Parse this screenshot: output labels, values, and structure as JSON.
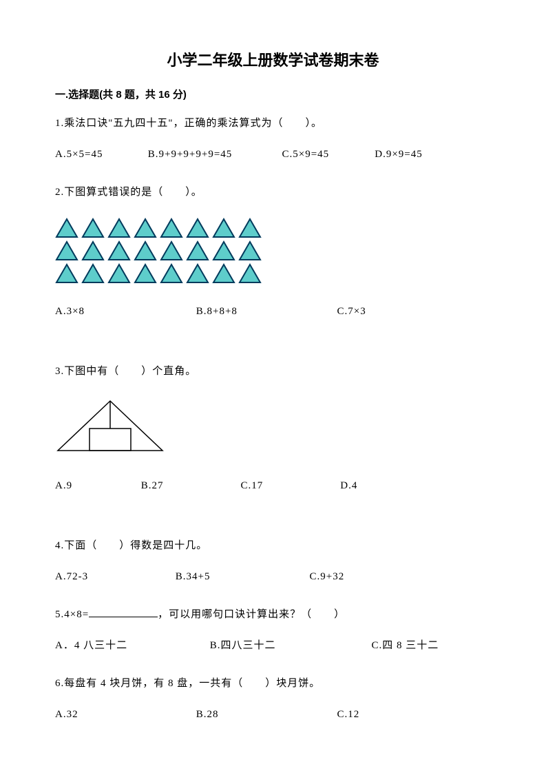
{
  "title": "小学二年级上册数学试卷期末卷",
  "section": "一.选择题(共 8 题，共 16 分)",
  "q1": {
    "text": "1.乘法口诀\"五九四十五\"，正确的乘法算式为（　　）。",
    "opts": {
      "a": "A.5×5=45",
      "b": "B.9+9+9+9+9=45",
      "c": "C.5×9=45",
      "d": "D.9×9=45"
    }
  },
  "q2": {
    "text": "2.下图算式错误的是（　　）。",
    "triangles": {
      "rows": [
        8,
        8,
        8
      ],
      "fill": "#5ecdcb",
      "stroke": "#003a5c"
    },
    "opts": {
      "a": "A.3×8",
      "b": "B.8+8+8",
      "c": "C.7×3"
    }
  },
  "q3": {
    "text": "3.下图中有（　　）个直角。",
    "opts": {
      "a": "A.9",
      "b": "B.27",
      "c": "C.17",
      "d": "D.4"
    }
  },
  "q4": {
    "text": "4.下面（　　）得数是四十几。",
    "opts": {
      "a": "A.72-3",
      "b": "B.34+5",
      "c": "C.9+32"
    }
  },
  "q5": {
    "prefix": "5.4×8=",
    "suffix": "，可以用哪句口诀计算出来？（　　）",
    "opts": {
      "a": "A．4 八三十二",
      "b": "B.四八三十二",
      "c": "C.四 8 三十二"
    }
  },
  "q6": {
    "text": "6.每盘有 4 块月饼，有 8 盘，一共有（　　）块月饼。",
    "opts": {
      "a": "A.32",
      "b": "B.28",
      "c": "C.12"
    }
  }
}
